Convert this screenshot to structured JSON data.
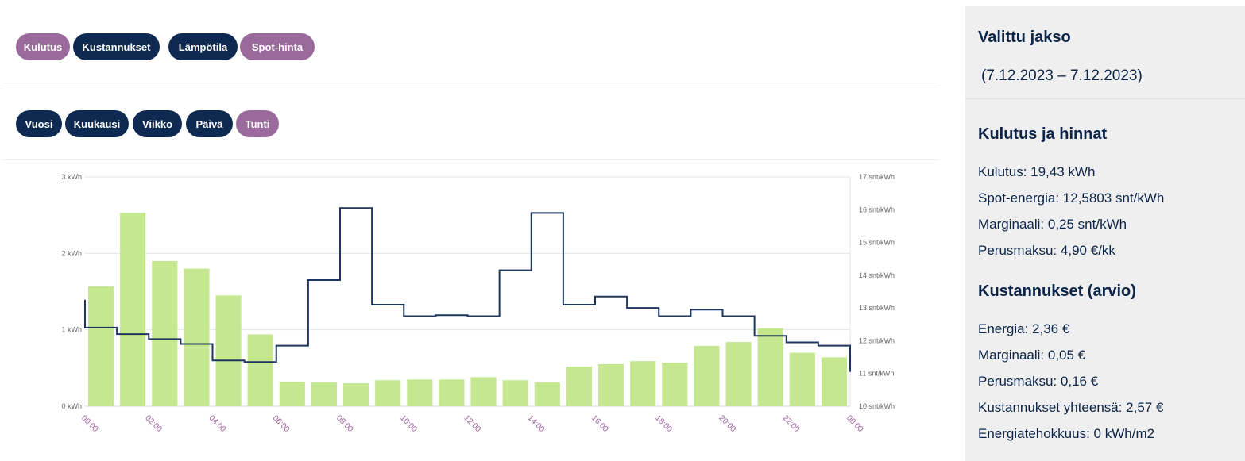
{
  "metric_tabs": [
    {
      "label": "Kulutus",
      "active": true
    },
    {
      "label": "Kustannukset",
      "active": false
    },
    {
      "label": "Lämpötila",
      "active": false
    },
    {
      "label": "Spot-hinta",
      "active": true
    }
  ],
  "period_tabs": [
    {
      "label": "Vuosi",
      "active": false
    },
    {
      "label": "Kuukausi",
      "active": false
    },
    {
      "label": "Viikko",
      "active": false
    },
    {
      "label": "Päivä",
      "active": false
    },
    {
      "label": "Tunti",
      "active": true
    }
  ],
  "colors": {
    "navy": "#0f2a52",
    "purple": "#9a6a9c",
    "bar": "#c5e790",
    "line": "#1c3660",
    "tick_x": "#9a5a9c"
  },
  "chart_data": {
    "type": "bar",
    "x_tick_labels": [
      "00:00",
      "02:00",
      "04:00",
      "06:00",
      "08:00",
      "10:00",
      "12:00",
      "14:00",
      "16:00",
      "18:00",
      "20:00",
      "22:00",
      "00:00"
    ],
    "hours": [
      "00",
      "01",
      "02",
      "03",
      "04",
      "05",
      "06",
      "07",
      "08",
      "09",
      "10",
      "11",
      "12",
      "13",
      "14",
      "15",
      "16",
      "17",
      "18",
      "19",
      "20",
      "21",
      "22",
      "23"
    ],
    "left_axis": {
      "ticks": [
        "0 kWh",
        "1 kWh",
        "2 kWh",
        "3 kWh"
      ],
      "ylim": [
        0,
        3
      ]
    },
    "right_axis": {
      "ticks": [
        "10 snt/kWh",
        "11 snt/kWh",
        "12 snt/kWh",
        "13 snt/kWh",
        "14 snt/kWh",
        "15 snt/kWh",
        "16 snt/kWh",
        "17 snt/kWh"
      ],
      "ylim": [
        10,
        17
      ]
    },
    "series": [
      {
        "type": "bar",
        "axis": "left",
        "unit": "kWh",
        "values": [
          1.57,
          2.53,
          1.9,
          1.8,
          1.45,
          0.94,
          0.32,
          0.31,
          0.3,
          0.34,
          0.35,
          0.35,
          0.38,
          0.34,
          0.31,
          0.52,
          0.55,
          0.59,
          0.57,
          0.79,
          0.84,
          1.02,
          0.7,
          0.64
        ]
      },
      {
        "type": "step-line",
        "axis": "right",
        "unit": "snt/kWh",
        "start": 13.25,
        "values": [
          12.4,
          12.2,
          12.05,
          11.9,
          11.4,
          11.35,
          11.85,
          13.85,
          16.05,
          13.1,
          12.75,
          12.78,
          12.75,
          14.15,
          15.9,
          13.1,
          13.35,
          13.0,
          12.75,
          12.95,
          12.75,
          12.15,
          11.95,
          11.85
        ],
        "end": 11.05
      }
    ]
  },
  "sidebar": {
    "period_title": "Valittu jakso",
    "period_range": "(7.12.2023 – 7.12.2023)",
    "usage_title": "Kulutus ja hinnat",
    "usage_lines": [
      "Kulutus: 19,43 kWh",
      "Spot-energia: 12,5803 snt/kWh",
      "Marginaali: 0,25 snt/kWh",
      "Perusmaksu: 4,90 €/kk"
    ],
    "cost_title": "Kustannukset (arvio)",
    "cost_lines": [
      "Energia: 2,36 €",
      "Marginaali: 0,05 €",
      "Perusmaksu: 0,16 €",
      "Kustannukset yhteensä: 2,57 €",
      "Energiatehokkuus: 0 kWh/m2"
    ]
  }
}
